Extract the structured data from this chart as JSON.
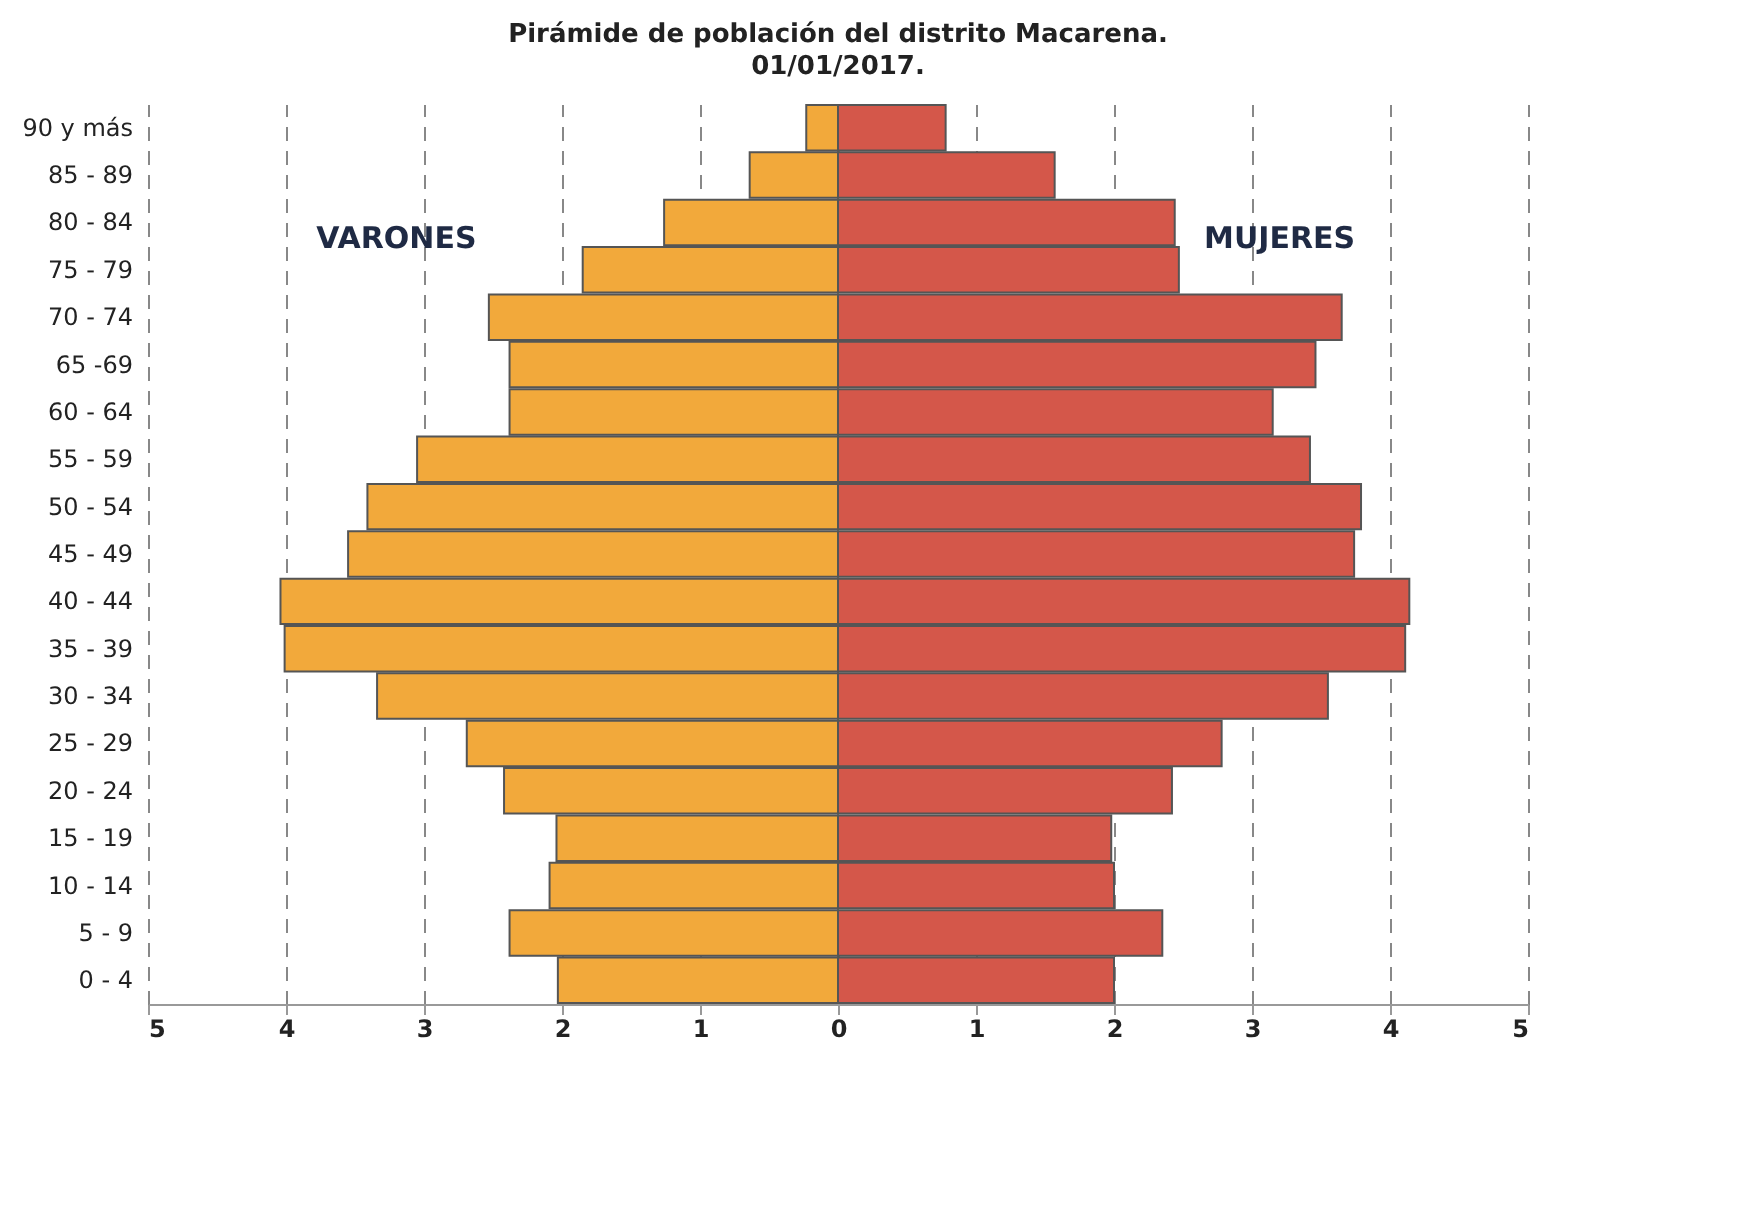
{
  "chart_data": {
    "type": "bar",
    "orientation": "horizontal",
    "title": "Pirámide de población del distrito Macarena.",
    "subtitle": "01/01/2017.",
    "categories": [
      "90 y más",
      "85 - 89",
      "80 - 84",
      "75 - 79",
      "70 - 74",
      "65 -69",
      "60 - 64",
      "55 - 59",
      "50 - 54",
      "45 - 49",
      "40 - 44",
      "35 - 39",
      "30 - 34",
      "25 - 29",
      "20 - 24",
      "15 - 19",
      "10 - 14",
      "5 - 9",
      "0 - 4"
    ],
    "series": [
      {
        "name": "VARONES",
        "color": "#f2a93b",
        "values": [
          -0.23,
          -0.64,
          -1.26,
          -1.85,
          -2.53,
          -2.38,
          -2.38,
          -3.05,
          -3.41,
          -3.55,
          -4.04,
          -4.01,
          -3.34,
          -2.69,
          -2.42,
          -2.04,
          -2.09,
          -2.38,
          -2.03
        ]
      },
      {
        "name": "MUJERES",
        "color": "#d4574a",
        "values": [
          0.78,
          1.57,
          2.44,
          2.47,
          3.65,
          3.46,
          3.15,
          3.42,
          3.79,
          3.74,
          4.14,
          4.11,
          3.55,
          2.78,
          2.42,
          1.98,
          2.0,
          2.35,
          2.0
        ]
      }
    ],
    "xlim": [
      -5,
      5
    ],
    "xticks": [
      {
        "value": -5,
        "label": "5"
      },
      {
        "value": -4,
        "label": "4"
      },
      {
        "value": -3,
        "label": "3"
      },
      {
        "value": -2,
        "label": "2"
      },
      {
        "value": -1,
        "label": "1"
      },
      0,
      1,
      2,
      3,
      4,
      5
    ],
    "grid": "x",
    "legend": false,
    "stacked": true
  }
}
